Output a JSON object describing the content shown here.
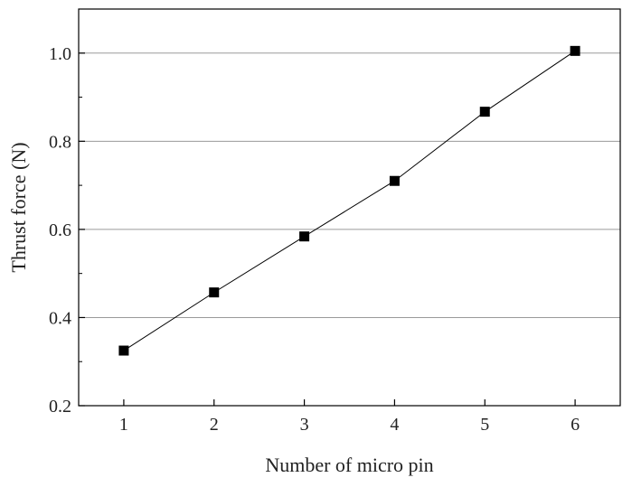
{
  "chart_data": {
    "type": "line",
    "title": "",
    "xlabel": "Number of micro pin",
    "ylabel": "Thrust force (N)",
    "x": [
      1,
      2,
      3,
      4,
      5,
      6
    ],
    "series": [
      {
        "values": [
          0.325,
          0.457,
          0.584,
          0.71,
          0.867,
          1.005
        ],
        "marker": "square",
        "color": "#000000"
      }
    ],
    "xlim": [
      0.5,
      6.5
    ],
    "ylim": [
      0.2,
      1.1
    ],
    "xticks": [
      1,
      2,
      3,
      4,
      5,
      6
    ],
    "yticks": [
      0.2,
      0.4,
      0.6,
      0.8,
      1.0
    ],
    "xtick_labels": [
      "1",
      "2",
      "3",
      "4",
      "5",
      "6"
    ],
    "ytick_labels": [
      "0.2",
      "0.4",
      "0.6",
      "0.8",
      "1.0"
    ],
    "grid": "horizontal",
    "legend": "none"
  }
}
